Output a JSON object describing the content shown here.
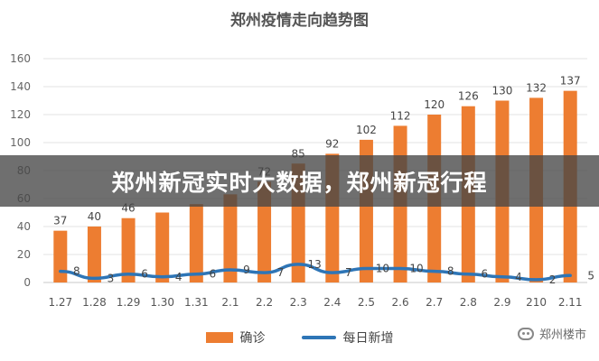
{
  "banner": {
    "text": "郑州新冠实时大数据，郑州新冠行程"
  },
  "watermark": {
    "text": "郑州楼市",
    "icon": "wechat-icon"
  },
  "chart_data": {
    "type": "bar",
    "title": "郑州疫情走向趋势图",
    "categories": [
      "1.27",
      "1.28",
      "1.29",
      "1.30",
      "1.31",
      "2.1",
      "2.2",
      "2.3",
      "2.4",
      "2.5",
      "2.6",
      "2.7",
      "2.8",
      "2.9",
      "210",
      "2.11"
    ],
    "ylim": [
      0,
      160
    ],
    "yticks": [
      0,
      20,
      40,
      60,
      80,
      100,
      120,
      140,
      160
    ],
    "grid": true,
    "legend_position": "bottom",
    "series": [
      {
        "name": "确诊",
        "type": "bar",
        "color": "#ED7D31",
        "values": [
          37,
          40,
          46,
          50,
          56,
          63,
          72,
          85,
          92,
          102,
          112,
          120,
          126,
          130,
          132,
          137
        ],
        "data_labels": [
          "37",
          "40",
          "46",
          "",
          "",
          "",
          "72",
          "85",
          "92",
          "102",
          "112",
          "120",
          "126",
          "130",
          "132",
          "137"
        ]
      },
      {
        "name": "每日新增",
        "type": "line",
        "color": "#2E75B6",
        "values": [
          8,
          3,
          6,
          4,
          6,
          9,
          7,
          13,
          7,
          10,
          10,
          8,
          6,
          4,
          2,
          5
        ],
        "data_labels": [
          "8",
          "3",
          "6",
          "4",
          "6",
          "9",
          "7",
          "13",
          "7",
          "10",
          "10",
          "8",
          "6",
          "4",
          "2",
          "5"
        ]
      }
    ]
  }
}
